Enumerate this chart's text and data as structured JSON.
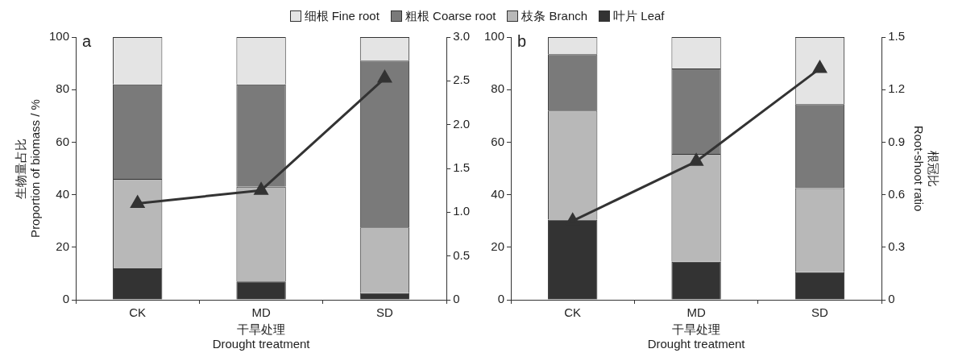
{
  "chart_data": [
    {
      "type": "bar",
      "stacked": true,
      "legend": "top",
      "categories": [
        "CK",
        "MD",
        "SD"
      ],
      "xlabel": "干旱处理\nDrought treatment",
      "ylabel": "生物量占比\nProportion of biomass / %",
      "annotations": [
        "a"
      ],
      "ylim": [
        0,
        100
      ],
      "yticks": [
        0,
        20,
        40,
        60,
        80,
        100
      ],
      "y2lim": [
        0,
        3
      ],
      "y2ticks": [
        0,
        {
          "value": 0.5,
          "label": "0.5"
        },
        {
          "value": 1,
          "label": "1.0"
        },
        {
          "value": 1.5,
          "label": "1.5"
        },
        {
          "value": 2,
          "label": "2.0"
        },
        {
          "value": 2.5,
          "label": "2.5"
        },
        {
          "value": 3,
          "label": "3.0"
        }
      ],
      "series": [
        {
          "name": "叶片 Leaf",
          "color": "#333333",
          "values": [
            12,
            7,
            2.5
          ]
        },
        {
          "name": "枝条 Branch",
          "color": "#b8b8b8",
          "values": [
            34,
            36,
            25
          ]
        },
        {
          "name": "粗根 Coarse root",
          "color": "#7a7a7a",
          "values": [
            36,
            39,
            63.5
          ]
        },
        {
          "name": "细根 Fine root",
          "color": "#e4e4e4",
          "values": [
            18,
            18,
            9
          ]
        },
        {
          "type": "line",
          "axis": "y2",
          "color": "#333333",
          "marker": "triangle",
          "values": [
            1.1,
            1.25,
            2.53
          ]
        }
      ]
    },
    {
      "type": "bar",
      "stacked": true,
      "categories": [
        "CK",
        "MD",
        "SD"
      ],
      "xlabel": "干旱处理\nDrought treatment",
      "y2label": "根冠比\nRoot-shoot ratio",
      "annotations": [
        "b"
      ],
      "ylim": [
        0,
        100
      ],
      "yticks": [
        0,
        20,
        40,
        60,
        80,
        100
      ],
      "y2lim": [
        0,
        1.5
      ],
      "y2ticks": [
        0,
        0.3,
        0.6,
        0.9,
        {
          "value": 1.2,
          "label": "1.2"
        },
        {
          "value": 1.5,
          "label": "1.5"
        }
      ],
      "series": [
        {
          "color": "#333333",
          "values": [
            30.5,
            14.5,
            10.5
          ]
        },
        {
          "color": "#b8b8b8",
          "values": [
            41.5,
            41,
            32
          ]
        },
        {
          "color": "#7a7a7a",
          "values": [
            21.5,
            32.5,
            32
          ]
        },
        {
          "color": "#e4e4e4",
          "values": [
            6.5,
            12,
            25.5
          ]
        },
        {
          "type": "line",
          "axis": "y2",
          "color": "#333333",
          "marker": "triangle",
          "values": [
            0.45,
            0.79,
            1.32
          ]
        }
      ]
    }
  ]
}
